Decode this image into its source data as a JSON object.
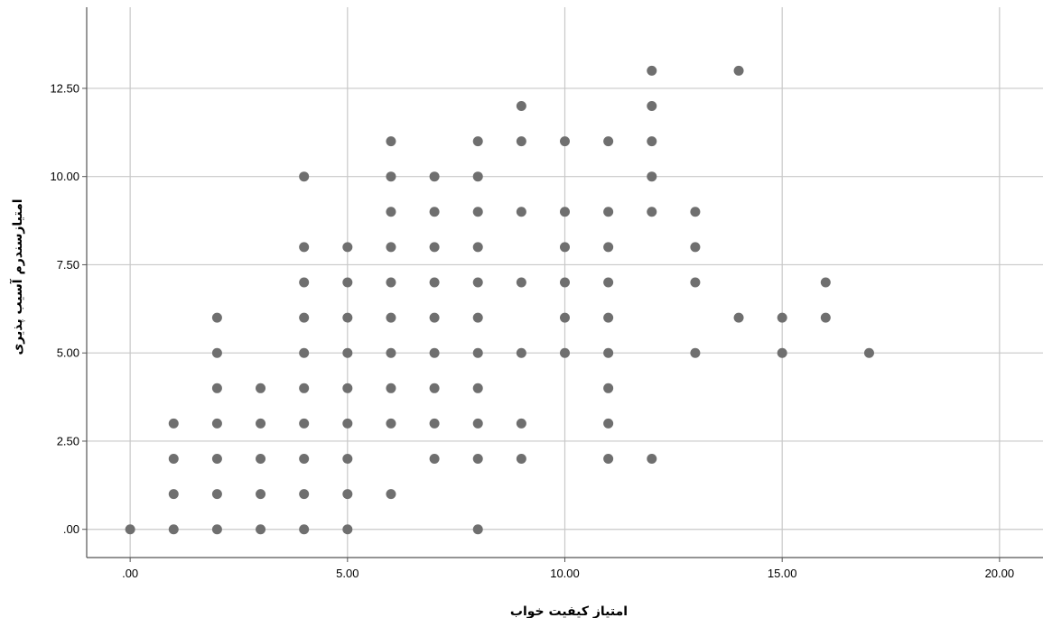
{
  "chart_data": {
    "type": "scatter",
    "xlabel": "امتیاز کیفیت خواب",
    "ylabel": "امتیازسندرم آسیب پذیری",
    "xlim": [
      -1,
      21
    ],
    "ylim": [
      -0.8,
      14.8
    ],
    "x_ticks": [
      0,
      5,
      10,
      15,
      20
    ],
    "y_ticks": [
      0,
      2.5,
      5,
      7.5,
      10,
      12.5
    ],
    "x_tick_labels": [
      ".00",
      "5.00",
      "10.00",
      "15.00",
      "20.00"
    ],
    "y_tick_labels": [
      ".00",
      "2.50",
      "5.00",
      "7.50",
      "10.00",
      "12.50"
    ],
    "grid": true,
    "marker_color": "#6f6f6f",
    "points": [
      [
        0,
        0
      ],
      [
        1,
        0
      ],
      [
        1,
        1
      ],
      [
        1,
        2
      ],
      [
        1,
        3
      ],
      [
        2,
        0
      ],
      [
        2,
        1
      ],
      [
        2,
        2
      ],
      [
        2,
        3
      ],
      [
        2,
        4
      ],
      [
        2,
        5
      ],
      [
        2,
        6
      ],
      [
        3,
        0
      ],
      [
        3,
        1
      ],
      [
        3,
        2
      ],
      [
        3,
        3
      ],
      [
        3,
        4
      ],
      [
        4,
        0
      ],
      [
        4,
        1
      ],
      [
        4,
        2
      ],
      [
        4,
        3
      ],
      [
        4,
        4
      ],
      [
        4,
        5
      ],
      [
        4,
        6
      ],
      [
        4,
        7
      ],
      [
        4,
        8
      ],
      [
        4,
        10
      ],
      [
        5,
        0
      ],
      [
        5,
        1
      ],
      [
        5,
        2
      ],
      [
        5,
        3
      ],
      [
        5,
        4
      ],
      [
        5,
        5
      ],
      [
        5,
        6
      ],
      [
        5,
        7
      ],
      [
        5,
        8
      ],
      [
        6,
        1
      ],
      [
        6,
        3
      ],
      [
        6,
        4
      ],
      [
        6,
        5
      ],
      [
        6,
        6
      ],
      [
        6,
        7
      ],
      [
        6,
        8
      ],
      [
        6,
        9
      ],
      [
        6,
        10
      ],
      [
        6,
        11
      ],
      [
        7,
        2
      ],
      [
        7,
        3
      ],
      [
        7,
        4
      ],
      [
        7,
        5
      ],
      [
        7,
        6
      ],
      [
        7,
        7
      ],
      [
        7,
        8
      ],
      [
        7,
        9
      ],
      [
        7,
        10
      ],
      [
        8,
        0
      ],
      [
        8,
        2
      ],
      [
        8,
        3
      ],
      [
        8,
        4
      ],
      [
        8,
        5
      ],
      [
        8,
        6
      ],
      [
        8,
        7
      ],
      [
        8,
        8
      ],
      [
        8,
        9
      ],
      [
        8,
        10
      ],
      [
        8,
        11
      ],
      [
        9,
        2
      ],
      [
        9,
        3
      ],
      [
        9,
        5
      ],
      [
        9,
        7
      ],
      [
        9,
        9
      ],
      [
        9,
        11
      ],
      [
        9,
        12
      ],
      [
        10,
        5
      ],
      [
        10,
        6
      ],
      [
        10,
        7
      ],
      [
        10,
        8
      ],
      [
        10,
        9
      ],
      [
        10,
        11
      ],
      [
        11,
        2
      ],
      [
        11,
        3
      ],
      [
        11,
        4
      ],
      [
        11,
        5
      ],
      [
        11,
        6
      ],
      [
        11,
        7
      ],
      [
        11,
        8
      ],
      [
        11,
        9
      ],
      [
        11,
        11
      ],
      [
        12,
        2
      ],
      [
        12,
        9
      ],
      [
        12,
        10
      ],
      [
        12,
        11
      ],
      [
        12,
        12
      ],
      [
        12,
        13
      ],
      [
        13,
        5
      ],
      [
        13,
        7
      ],
      [
        13,
        8
      ],
      [
        13,
        9
      ],
      [
        14,
        6
      ],
      [
        14,
        13
      ],
      [
        15,
        5
      ],
      [
        15,
        6
      ],
      [
        16,
        6
      ],
      [
        16,
        7
      ],
      [
        17,
        5
      ]
    ]
  }
}
